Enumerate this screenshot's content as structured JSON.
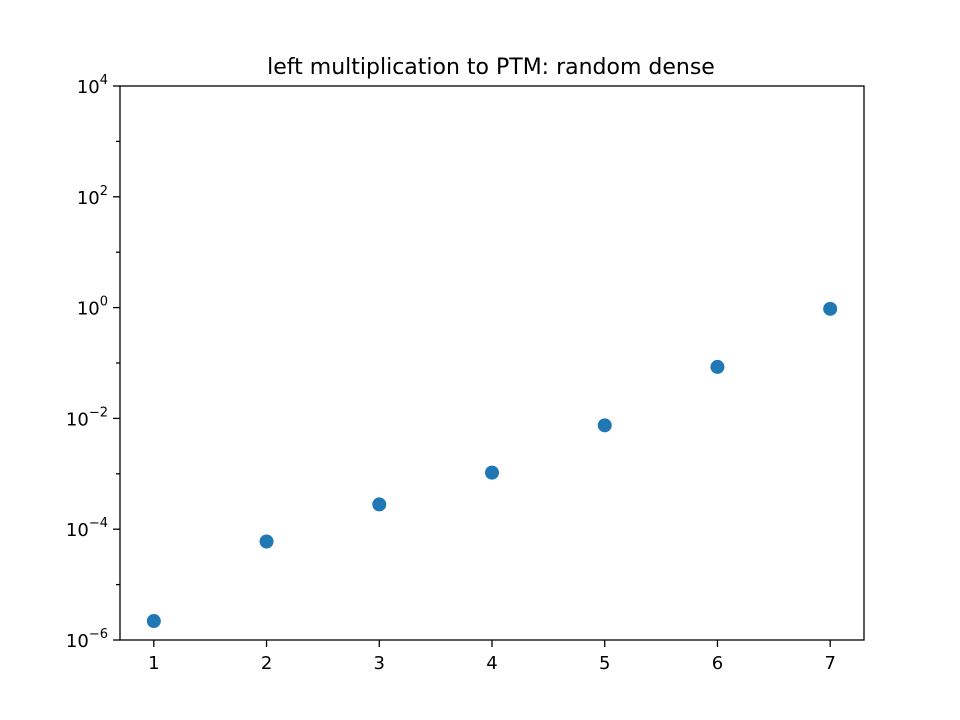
{
  "chart_data": {
    "type": "scatter",
    "title": "left multiplication to PTM: random dense",
    "xlabel": "",
    "ylabel": "",
    "x": [
      1,
      2,
      3,
      4,
      5,
      6,
      7
    ],
    "series": [
      {
        "values": [
          2.2e-06,
          6e-05,
          0.00028,
          0.00105,
          0.0075,
          0.085,
          0.95
        ],
        "color": "#1f77b4"
      }
    ],
    "xlim": [
      0.7,
      7.3
    ],
    "ylim": [
      1e-06,
      10000
    ],
    "yscale": "log",
    "grid": false,
    "xticks": [
      1,
      2,
      3,
      4,
      5,
      6,
      7
    ],
    "xtick_labels": [
      "1",
      "2",
      "3",
      "4",
      "5",
      "6",
      "7"
    ],
    "yticks": [
      1e-06,
      0.0001,
      0.01,
      1,
      100,
      10000
    ],
    "ytick_labels": [
      {
        "base": "10",
        "exp": "−6"
      },
      {
        "base": "10",
        "exp": "−4"
      },
      {
        "base": "10",
        "exp": "−2"
      },
      {
        "base": "10",
        "exp": "0"
      },
      {
        "base": "10",
        "exp": "2"
      },
      {
        "base": "10",
        "exp": "4"
      }
    ]
  }
}
